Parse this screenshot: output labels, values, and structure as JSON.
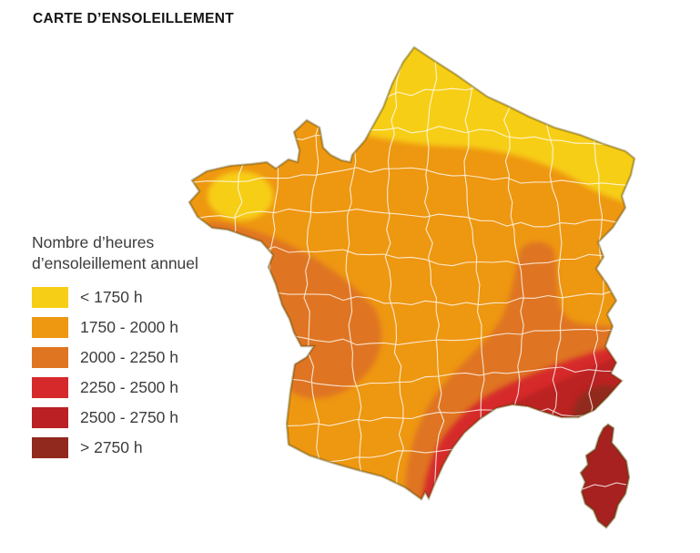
{
  "title": "CARTE D’ENSOLEILLEMENT",
  "legend": {
    "title_line1": "Nombre d’heures",
    "title_line2": "d’ensoleillement annuel",
    "items": [
      {
        "label": "< 1750 h",
        "color": "#F7CE16"
      },
      {
        "label": "1750 - 2000 h",
        "color": "#EE9711"
      },
      {
        "label": "2000 - 2250 h",
        "color": "#DF7520"
      },
      {
        "label": "2250 - 2500 h",
        "color": "#D6292B"
      },
      {
        "label": "2500 - 2750 h",
        "color": "#BB2124"
      },
      {
        "label": "> 2750 h",
        "color": "#91291F"
      }
    ]
  },
  "map": {
    "country": "France",
    "type": "choropleth",
    "unit": "heures d'ensoleillement par an",
    "corsica_color": "#A62120",
    "outline_color": "#4D4000",
    "department_line_color": "#FFFFFF",
    "zones": [
      {
        "area": "Nord, Picardie, Champagne, Lorraine, Alsace nord",
        "range": "< 1750 h"
      },
      {
        "area": "Centre de la Bretagne (poche)",
        "range": "< 1750 h"
      },
      {
        "area": "Grande moitié nord, centre et sud-ouest",
        "range": "1750 - 2000 h"
      },
      {
        "area": "Littoral atlantique (sud Bretagne - Vendée - Charentes)",
        "range": "2000 - 2250 h"
      },
      {
        "area": "Vallée du Rhône et arrière-pays méditerranéen",
        "range": "2000 - 2250 h"
      },
      {
        "area": "Languedoc - bas Rhône - Roussillon",
        "range": "2250 - 2500 h"
      },
      {
        "area": "Provence et littoral méditerranéen",
        "range": "2500 - 2750 h"
      },
      {
        "area": "Var - Alpes-Maritimes",
        "range": "> 2750 h"
      },
      {
        "area": "Corse",
        "range": "2500 - 2750 h"
      }
    ]
  }
}
